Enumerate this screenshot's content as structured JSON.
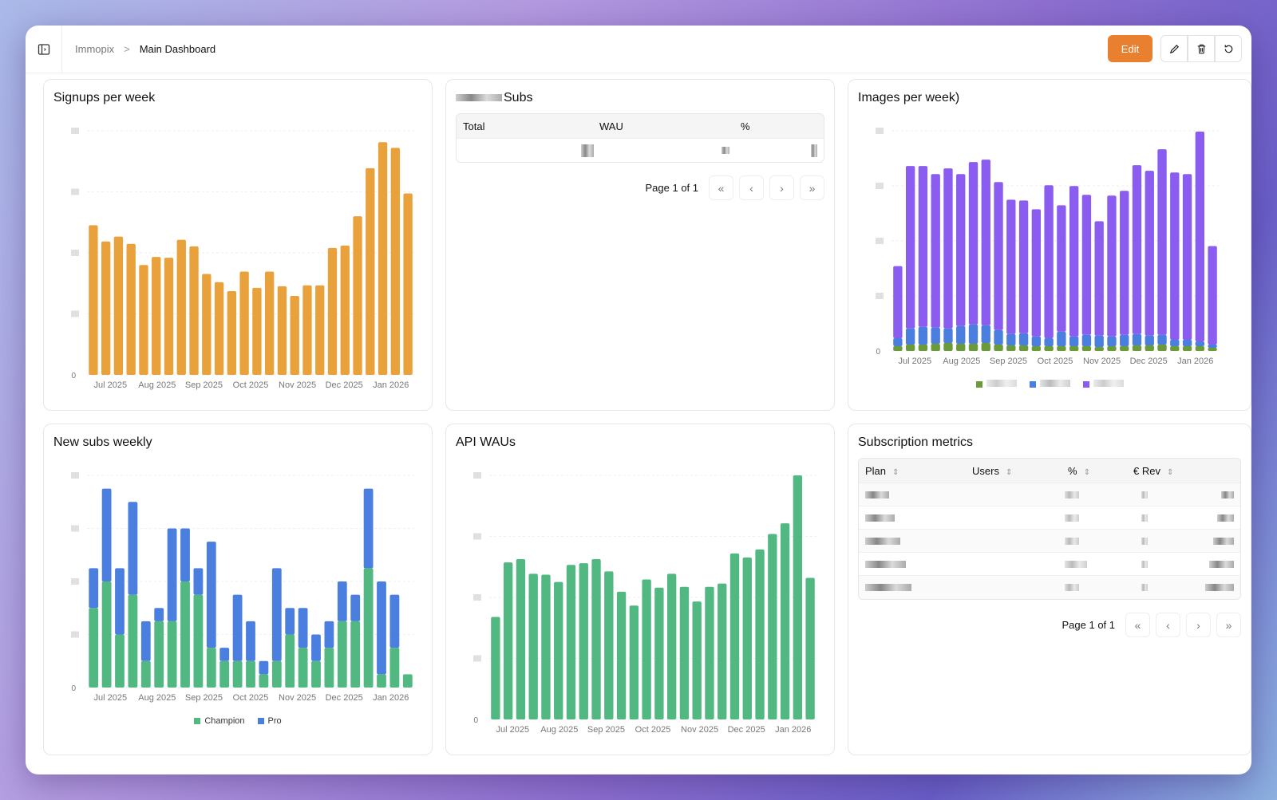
{
  "header": {
    "breadcrumb_root": "Immopix",
    "breadcrumb_sep": ">",
    "breadcrumb_current": "Main Dashboard",
    "edit_label": "Edit"
  },
  "icons": {
    "sidebar": "sidebar-toggle-icon",
    "pencil": "pencil-icon",
    "trash": "trash-icon",
    "refresh": "refresh-icon"
  },
  "subs_table": {
    "title": "Subs",
    "columns": [
      "Total",
      "WAU",
      "%"
    ],
    "page_label": "Page 1 of 1"
  },
  "metrics_table": {
    "title": "Subscription metrics",
    "columns": [
      "Plan",
      "Users",
      "%",
      "€ Rev"
    ],
    "row_count": 5,
    "page_label": "Page 1 of 1"
  },
  "chart_data": [
    {
      "id": "signups",
      "type": "bar",
      "title": "Signups per week",
      "ylim": [
        0,
        300
      ],
      "ytick_zero": "0",
      "x_labels": [
        "Jul 2025",
        "Aug 2025",
        "Sep 2025",
        "Oct 2025",
        "Nov 2025",
        "Dec 2025",
        "Jan 2026"
      ],
      "series": [
        {
          "name": "Signups",
          "color": "#e9a23b",
          "values": [
            184,
            164,
            170,
            161,
            135,
            145,
            144,
            166,
            158,
            124,
            114,
            103,
            127,
            107,
            127,
            109,
            97,
            110,
            110,
            156,
            159,
            195,
            254,
            286,
            279,
            223
          ]
        }
      ]
    },
    {
      "id": "images",
      "type": "bar",
      "stacked": true,
      "title": "Images per week)",
      "ylim": [
        0,
        275
      ],
      "ytick_zero": "0",
      "x_labels": [
        "Jul 2025",
        "Aug 2025",
        "Sep 2025",
        "Oct 2025",
        "Nov 2025",
        "Dec 2025",
        "Jan 2026"
      ],
      "series": [
        {
          "name": "",
          "color": "#6a9a3a",
          "values": [
            6,
            8,
            8,
            9,
            10,
            9,
            9,
            10,
            8,
            7,
            7,
            6,
            6,
            6,
            6,
            6,
            5,
            6,
            6,
            7,
            7,
            8,
            6,
            6,
            6,
            4
          ]
        },
        {
          "name": "",
          "color": "#4a7fe0",
          "values": [
            10,
            20,
            22,
            20,
            18,
            22,
            24,
            22,
            18,
            14,
            15,
            12,
            10,
            18,
            12,
            14,
            14,
            12,
            14,
            14,
            12,
            12,
            8,
            8,
            6,
            4
          ]
        },
        {
          "name": "",
          "color": "#8a5cf0",
          "values": [
            90,
            203,
            201,
            192,
            200,
            190,
            203,
            207,
            185,
            168,
            166,
            159,
            191,
            158,
            188,
            175,
            143,
            176,
            180,
            211,
            206,
            232,
            209,
            207,
            262,
            123
          ]
        }
      ]
    },
    {
      "id": "newsubs",
      "type": "bar",
      "stacked": true,
      "title": "New subs weekly",
      "ylim": [
        0,
        16
      ],
      "ytick_zero": "0",
      "x_labels": [
        "Jul 2025",
        "Aug 2025",
        "Sep 2025",
        "Oct 2025",
        "Nov 2025",
        "Dec 2025",
        "Jan 2026"
      ],
      "series": [
        {
          "name": "Champion",
          "color": "#52b882",
          "values": [
            6,
            8,
            4,
            7,
            2,
            5,
            5,
            8,
            7,
            3,
            2,
            2,
            2,
            1,
            2,
            4,
            3,
            2,
            3,
            5,
            5,
            9,
            1,
            3,
            1
          ]
        },
        {
          "name": "Pro",
          "color": "#4a7fe0",
          "values": [
            3,
            7,
            5,
            7,
            3,
            1,
            7,
            4,
            2,
            8,
            1,
            5,
            3,
            1,
            7,
            2,
            3,
            2,
            2,
            3,
            2,
            6,
            7,
            4,
            0
          ]
        }
      ]
    },
    {
      "id": "apiwau",
      "type": "bar",
      "title": "API WAUs",
      "ylim": [
        0,
        300
      ],
      "ytick_zero": "0",
      "x_labels": [
        "Jul 2025",
        "Aug 2025",
        "Sep 2025",
        "Oct 2025",
        "Nov 2025",
        "Dec 2025",
        "Jan 2026"
      ],
      "series": [
        {
          "name": "WAU",
          "color": "#52b882",
          "values": [
            126,
            193,
            197,
            179,
            178,
            169,
            190,
            192,
            197,
            182,
            157,
            140,
            172,
            162,
            179,
            163,
            145,
            163,
            167,
            204,
            199,
            209,
            228,
            241,
            300,
            174
          ]
        }
      ]
    }
  ]
}
